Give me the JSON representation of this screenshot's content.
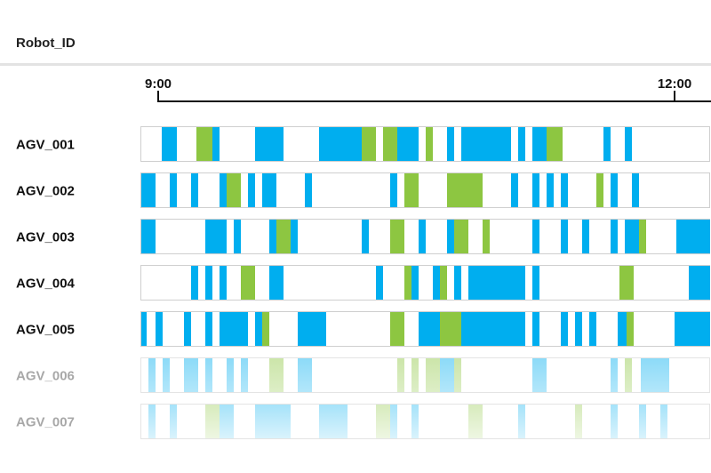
{
  "header": {
    "title": "Robot_ID"
  },
  "chart_data": {
    "type": "timeline",
    "time_axis": {
      "ticks": [
        "9:00",
        "12:00"
      ]
    },
    "states": {
      "blue": "#00aeef",
      "green": "#8dc641"
    },
    "rows": [
      {
        "label": "AGV_001",
        "faded": false,
        "segments": [
          {
            "start": 23,
            "end": 40,
            "state": "blue"
          },
          {
            "start": 62,
            "end": 80,
            "state": "green"
          },
          {
            "start": 80,
            "end": 88,
            "state": "blue"
          },
          {
            "start": 128,
            "end": 160,
            "state": "blue"
          },
          {
            "start": 200,
            "end": 248,
            "state": "blue"
          },
          {
            "start": 248,
            "end": 264,
            "state": "green"
          },
          {
            "start": 272,
            "end": 288,
            "state": "green"
          },
          {
            "start": 288,
            "end": 312,
            "state": "blue"
          },
          {
            "start": 320,
            "end": 328,
            "state": "green"
          },
          {
            "start": 344,
            "end": 352,
            "state": "blue"
          },
          {
            "start": 360,
            "end": 416,
            "state": "blue"
          },
          {
            "start": 424,
            "end": 432,
            "state": "blue"
          },
          {
            "start": 440,
            "end": 456,
            "state": "blue"
          },
          {
            "start": 456,
            "end": 474,
            "state": "green"
          },
          {
            "start": 520,
            "end": 528,
            "state": "blue"
          },
          {
            "start": 544,
            "end": 552,
            "state": "blue"
          }
        ]
      },
      {
        "label": "AGV_002",
        "faded": false,
        "segments": [
          {
            "start": 0,
            "end": 16,
            "state": "blue"
          },
          {
            "start": 32,
            "end": 40,
            "state": "blue"
          },
          {
            "start": 56,
            "end": 64,
            "state": "blue"
          },
          {
            "start": 88,
            "end": 96,
            "state": "blue"
          },
          {
            "start": 96,
            "end": 112,
            "state": "green"
          },
          {
            "start": 120,
            "end": 128,
            "state": "blue"
          },
          {
            "start": 136,
            "end": 152,
            "state": "blue"
          },
          {
            "start": 184,
            "end": 192,
            "state": "blue"
          },
          {
            "start": 280,
            "end": 288,
            "state": "blue"
          },
          {
            "start": 296,
            "end": 312,
            "state": "green"
          },
          {
            "start": 344,
            "end": 384,
            "state": "green"
          },
          {
            "start": 416,
            "end": 424,
            "state": "blue"
          },
          {
            "start": 440,
            "end": 448,
            "state": "blue"
          },
          {
            "start": 456,
            "end": 464,
            "state": "blue"
          },
          {
            "start": 472,
            "end": 480,
            "state": "blue"
          },
          {
            "start": 512,
            "end": 520,
            "state": "green"
          },
          {
            "start": 528,
            "end": 536,
            "state": "blue"
          },
          {
            "start": 552,
            "end": 560,
            "state": "blue"
          }
        ]
      },
      {
        "label": "AGV_003",
        "faded": false,
        "segments": [
          {
            "start": 0,
            "end": 16,
            "state": "blue"
          },
          {
            "start": 72,
            "end": 96,
            "state": "blue"
          },
          {
            "start": 104,
            "end": 112,
            "state": "blue"
          },
          {
            "start": 144,
            "end": 152,
            "state": "blue"
          },
          {
            "start": 152,
            "end": 168,
            "state": "green"
          },
          {
            "start": 168,
            "end": 176,
            "state": "blue"
          },
          {
            "start": 248,
            "end": 256,
            "state": "blue"
          },
          {
            "start": 280,
            "end": 296,
            "state": "green"
          },
          {
            "start": 312,
            "end": 320,
            "state": "blue"
          },
          {
            "start": 344,
            "end": 352,
            "state": "blue"
          },
          {
            "start": 352,
            "end": 368,
            "state": "green"
          },
          {
            "start": 384,
            "end": 392,
            "state": "green"
          },
          {
            "start": 440,
            "end": 448,
            "state": "blue"
          },
          {
            "start": 472,
            "end": 480,
            "state": "blue"
          },
          {
            "start": 496,
            "end": 504,
            "state": "blue"
          },
          {
            "start": 528,
            "end": 536,
            "state": "blue"
          },
          {
            "start": 544,
            "end": 560,
            "state": "blue"
          },
          {
            "start": 560,
            "end": 568,
            "state": "green"
          },
          {
            "start": 602,
            "end": 640,
            "state": "blue"
          }
        ]
      },
      {
        "label": "AGV_004",
        "faded": false,
        "segments": [
          {
            "start": 56,
            "end": 64,
            "state": "blue"
          },
          {
            "start": 72,
            "end": 80,
            "state": "blue"
          },
          {
            "start": 88,
            "end": 96,
            "state": "blue"
          },
          {
            "start": 112,
            "end": 128,
            "state": "green"
          },
          {
            "start": 144,
            "end": 160,
            "state": "blue"
          },
          {
            "start": 264,
            "end": 272,
            "state": "blue"
          },
          {
            "start": 296,
            "end": 304,
            "state": "green"
          },
          {
            "start": 304,
            "end": 312,
            "state": "blue"
          },
          {
            "start": 328,
            "end": 336,
            "state": "blue"
          },
          {
            "start": 336,
            "end": 344,
            "state": "green"
          },
          {
            "start": 352,
            "end": 360,
            "state": "blue"
          },
          {
            "start": 368,
            "end": 432,
            "state": "blue"
          },
          {
            "start": 440,
            "end": 448,
            "state": "blue"
          },
          {
            "start": 538,
            "end": 554,
            "state": "green"
          },
          {
            "start": 616,
            "end": 640,
            "state": "blue"
          }
        ]
      },
      {
        "label": "AGV_005",
        "faded": false,
        "segments": [
          {
            "start": 0,
            "end": 6,
            "state": "blue"
          },
          {
            "start": 16,
            "end": 24,
            "state": "blue"
          },
          {
            "start": 48,
            "end": 56,
            "state": "blue"
          },
          {
            "start": 72,
            "end": 80,
            "state": "blue"
          },
          {
            "start": 88,
            "end": 120,
            "state": "blue"
          },
          {
            "start": 128,
            "end": 136,
            "state": "blue"
          },
          {
            "start": 136,
            "end": 144,
            "state": "green"
          },
          {
            "start": 176,
            "end": 208,
            "state": "blue"
          },
          {
            "start": 280,
            "end": 296,
            "state": "green"
          },
          {
            "start": 312,
            "end": 336,
            "state": "blue"
          },
          {
            "start": 336,
            "end": 360,
            "state": "green"
          },
          {
            "start": 360,
            "end": 432,
            "state": "blue"
          },
          {
            "start": 440,
            "end": 448,
            "state": "blue"
          },
          {
            "start": 472,
            "end": 480,
            "state": "blue"
          },
          {
            "start": 488,
            "end": 496,
            "state": "blue"
          },
          {
            "start": 504,
            "end": 512,
            "state": "blue"
          },
          {
            "start": 536,
            "end": 546,
            "state": "blue"
          },
          {
            "start": 546,
            "end": 554,
            "state": "green"
          },
          {
            "start": 600,
            "end": 640,
            "state": "blue"
          }
        ]
      },
      {
        "label": "AGV_006",
        "faded": true,
        "segments": [
          {
            "start": 8,
            "end": 16,
            "state": "blue"
          },
          {
            "start": 24,
            "end": 32,
            "state": "blue"
          },
          {
            "start": 48,
            "end": 64,
            "state": "blue"
          },
          {
            "start": 72,
            "end": 80,
            "state": "blue"
          },
          {
            "start": 96,
            "end": 104,
            "state": "blue"
          },
          {
            "start": 112,
            "end": 120,
            "state": "blue"
          },
          {
            "start": 144,
            "end": 160,
            "state": "green"
          },
          {
            "start": 176,
            "end": 192,
            "state": "blue"
          },
          {
            "start": 288,
            "end": 296,
            "state": "green"
          },
          {
            "start": 304,
            "end": 312,
            "state": "green"
          },
          {
            "start": 320,
            "end": 336,
            "state": "green"
          },
          {
            "start": 336,
            "end": 352,
            "state": "blue"
          },
          {
            "start": 352,
            "end": 360,
            "state": "green"
          },
          {
            "start": 440,
            "end": 456,
            "state": "blue"
          },
          {
            "start": 528,
            "end": 536,
            "state": "blue"
          },
          {
            "start": 544,
            "end": 552,
            "state": "green"
          },
          {
            "start": 562,
            "end": 594,
            "state": "blue"
          }
        ]
      },
      {
        "label": "AGV_007",
        "faded": true,
        "segments": [
          {
            "start": 8,
            "end": 16,
            "state": "blue"
          },
          {
            "start": 32,
            "end": 40,
            "state": "blue"
          },
          {
            "start": 72,
            "end": 88,
            "state": "green"
          },
          {
            "start": 88,
            "end": 104,
            "state": "blue"
          },
          {
            "start": 128,
            "end": 168,
            "state": "blue"
          },
          {
            "start": 200,
            "end": 232,
            "state": "blue"
          },
          {
            "start": 264,
            "end": 280,
            "state": "green"
          },
          {
            "start": 280,
            "end": 288,
            "state": "blue"
          },
          {
            "start": 304,
            "end": 312,
            "state": "blue"
          },
          {
            "start": 368,
            "end": 384,
            "state": "green"
          },
          {
            "start": 424,
            "end": 432,
            "state": "blue"
          },
          {
            "start": 488,
            "end": 496,
            "state": "green"
          },
          {
            "start": 528,
            "end": 536,
            "state": "blue"
          },
          {
            "start": 560,
            "end": 568,
            "state": "blue"
          },
          {
            "start": 584,
            "end": 592,
            "state": "blue"
          }
        ]
      }
    ]
  }
}
